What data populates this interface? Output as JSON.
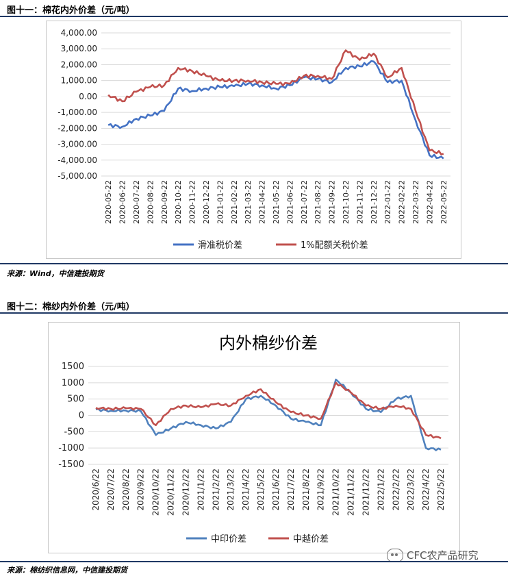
{
  "fig1": {
    "title": "图十一：棉花内外价差（元/吨）",
    "source": "来源：Wind，中信建投期货",
    "chart_data": {
      "type": "line",
      "title": "",
      "ylim": [
        -5000,
        4000
      ],
      "yticks": [
        4000,
        3000,
        2000,
        1000,
        0,
        -1000,
        -2000,
        -3000,
        -4000,
        -5000
      ],
      "ytick_labels": [
        "4,000.00",
        "3,000.00",
        "2,000.00",
        "1,000.00",
        "0.00",
        "-1,000.00",
        "-2,000.00",
        "-3,000.00",
        "-4,000.00",
        "-5,000.00"
      ],
      "categories": [
        "2020-05-22",
        "2020-06-22",
        "2020-07-22",
        "2020-08-22",
        "2020-09-22",
        "2020-10-22",
        "2020-11-22",
        "2020-12-22",
        "2021-01-22",
        "2021-02-22",
        "2021-03-22",
        "2021-04-22",
        "2021-05-22",
        "2021-06-22",
        "2021-07-22",
        "2021-08-22",
        "2021-09-22",
        "2021-10-22",
        "2021-11-22",
        "2021-12-22",
        "2022-01-22",
        "2022-02-22",
        "2022-03-22",
        "2022-04-22",
        "2022-05-22"
      ],
      "legend_position": "bottom",
      "grid": true,
      "series": [
        {
          "name": "滑准税价差",
          "color": "#4472c4",
          "values": [
            -1800,
            -1900,
            -1400,
            -1200,
            -900,
            500,
            350,
            500,
            600,
            650,
            800,
            700,
            500,
            700,
            1200,
            1100,
            900,
            1800,
            1900,
            2200,
            900,
            1000,
            -1500,
            -3700,
            -3900
          ]
        },
        {
          "name": "1%配额关税价差",
          "color": "#c0504d",
          "values": [
            100,
            -300,
            300,
            600,
            700,
            1800,
            1600,
            1300,
            1000,
            1000,
            1000,
            900,
            800,
            800,
            1300,
            1300,
            1100,
            2900,
            2300,
            2700,
            1200,
            1800,
            -900,
            -3400,
            -3600
          ]
        }
      ]
    }
  },
  "fig2": {
    "title": "图十二：棉纱内外价差（元/吨）",
    "source": "来源：棉纺织信息网，中信建投期货",
    "watermark": "CFC农产品研究",
    "chart_data": {
      "type": "line",
      "title": "内外棉纱价差",
      "ylim": [
        -1500,
        1500
      ],
      "yticks": [
        1500,
        1000,
        500,
        0,
        -500,
        -1000,
        -1500
      ],
      "ytick_labels": [
        "1500",
        "1000",
        "500",
        "0",
        "-500",
        "-1000",
        "-1500"
      ],
      "categories": [
        "2020/6/22",
        "2020/7/22",
        "2020/8/22",
        "2020/9/22",
        "2020/10/22",
        "2020/11/22",
        "2020/12/22",
        "2021/1/22",
        "2021/2/22",
        "2021/3/22",
        "2021/4/22",
        "2021/5/22",
        "2021/6/22",
        "2021/7/22",
        "2021/8/22",
        "2021/9/22",
        "2021/10/22",
        "2021/11/22",
        "2021/12/22",
        "2022/1/22",
        "2022/2/22",
        "2022/3/22",
        "2022/4/22",
        "2022/5/22"
      ],
      "legend_position": "bottom",
      "grid": true,
      "series": [
        {
          "name": "中印价差",
          "color": "#4f81bd",
          "values": [
            180,
            140,
            150,
            130,
            -600,
            -400,
            -200,
            -300,
            -400,
            -200,
            500,
            600,
            300,
            -100,
            -200,
            -300,
            1100,
            700,
            200,
            100,
            500,
            600,
            -1000,
            -1050
          ]
        },
        {
          "name": "中越价差",
          "color": "#c0504d",
          "values": [
            230,
            200,
            220,
            200,
            -300,
            200,
            300,
            250,
            350,
            300,
            600,
            800,
            400,
            100,
            0,
            -100,
            1000,
            700,
            300,
            200,
            300,
            200,
            -600,
            -700
          ]
        }
      ]
    }
  }
}
